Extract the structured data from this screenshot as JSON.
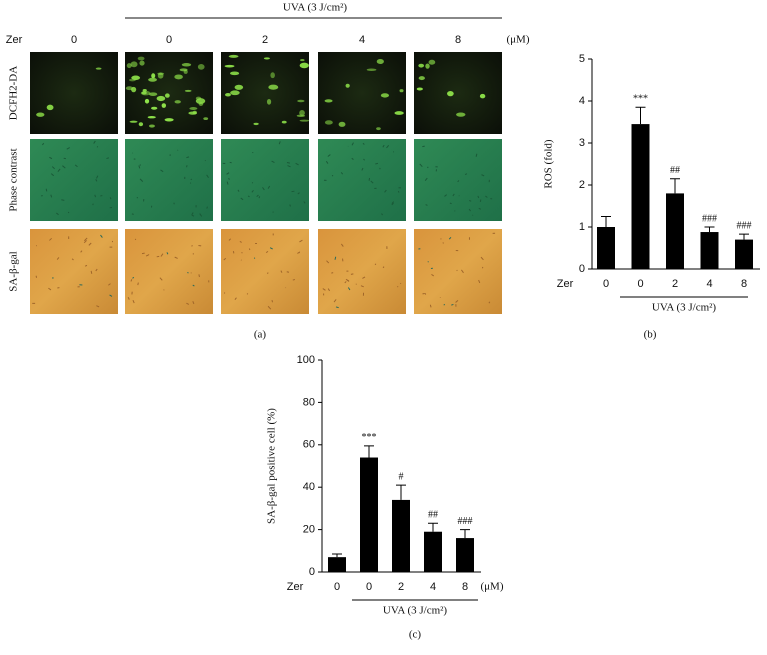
{
  "panel_a": {
    "header": "UVA (3 J/cm²)",
    "treatment_label": "Zer",
    "unit": "(μM)",
    "columns": [
      "0",
      "0",
      "2",
      "4",
      "8"
    ],
    "rows": [
      "DCFH2-DA",
      "Phase contrast",
      "SA-β-gal"
    ],
    "caption": "(a)"
  },
  "chart_data": [
    {
      "type": "bar",
      "ylabel": "ROS (fold)",
      "xlabel": "Zer",
      "group_label": "UVA (3 J/cm²)",
      "caption": "(b)",
      "categories": [
        "0",
        "0",
        "2",
        "4",
        "8"
      ],
      "values": [
        1.0,
        3.45,
        1.8,
        0.88,
        0.7
      ],
      "errors": [
        0.25,
        0.4,
        0.35,
        0.12,
        0.13
      ],
      "annotations": [
        null,
        "***",
        "##",
        "###",
        "###"
      ],
      "color": "#000000",
      "ylim": [
        0,
        5
      ],
      "yticks": [
        0,
        1,
        2,
        3,
        4,
        5
      ]
    },
    {
      "type": "bar",
      "ylabel": "SA-β-gal positive cell (%)",
      "xlabel": "Zer",
      "unit": "(μM)",
      "group_label": "UVA (3 J/cm²)",
      "caption": "(c)",
      "categories": [
        "0",
        "0",
        "2",
        "4",
        "8"
      ],
      "values": [
        7,
        54,
        34,
        19,
        16
      ],
      "errors": [
        1.5,
        5.5,
        7,
        4,
        4
      ],
      "annotations": [
        null,
        "***",
        "#",
        "##",
        "###"
      ],
      "color": "#000000",
      "ylim": [
        0,
        100
      ],
      "yticks": [
        0,
        20,
        40,
        60,
        80,
        100
      ]
    }
  ]
}
